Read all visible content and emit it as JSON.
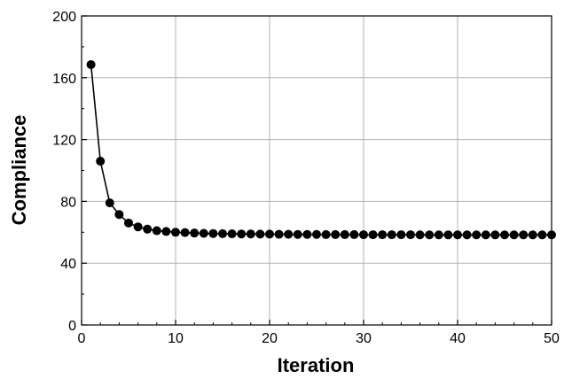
{
  "chart_data": {
    "type": "line",
    "title": "",
    "xlabel": "Iteration",
    "ylabel": "Compliance",
    "xlim": [
      0,
      50
    ],
    "ylim": [
      0,
      200
    ],
    "x_ticks": [
      "0",
      "10",
      "20",
      "30",
      "40",
      "50"
    ],
    "y_ticks": [
      "0",
      "40",
      "80",
      "120",
      "160",
      "200"
    ],
    "grid": true,
    "legend": "none",
    "line_color": "#000000",
    "marker_color": "#000000",
    "marker": "filled-circle",
    "series": [
      {
        "x": [
          1,
          2,
          3,
          4,
          5,
          6,
          7,
          8,
          9,
          10,
          11,
          12,
          13,
          14,
          15,
          16,
          17,
          18,
          19,
          20,
          21,
          22,
          23,
          24,
          25,
          26,
          27,
          28,
          29,
          30,
          31,
          32,
          33,
          34,
          35,
          36,
          37,
          38,
          39,
          40,
          41,
          42,
          43,
          44,
          45,
          46,
          47,
          48,
          49,
          50
        ],
        "values": [
          168.5,
          106,
          79,
          71.5,
          66,
          63.5,
          62,
          61,
          60.5,
          60,
          59.8,
          59.5,
          59.3,
          59.2,
          59.1,
          59,
          58.9,
          58.9,
          58.8,
          58.8,
          58.7,
          58.7,
          58.6,
          58.6,
          58.6,
          58.5,
          58.5,
          58.5,
          58.5,
          58.4,
          58.4,
          58.4,
          58.4,
          58.4,
          58.4,
          58.3,
          58.3,
          58.3,
          58.3,
          58.3,
          58.3,
          58.3,
          58.3,
          58.3,
          58.3,
          58.3,
          58.3,
          58.3,
          58.3,
          58.3
        ]
      }
    ]
  }
}
